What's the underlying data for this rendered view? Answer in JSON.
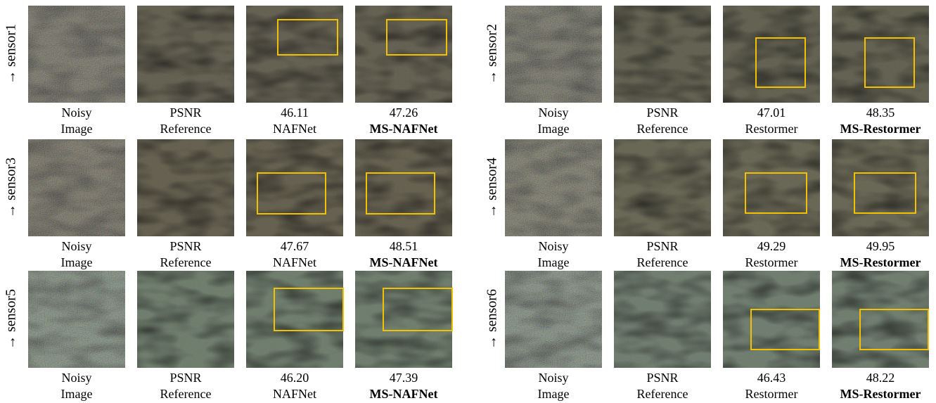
{
  "panels": [
    {
      "label": "→ sensor1",
      "images": [
        {
          "line1": "Noisy",
          "line2": "Image"
        },
        {
          "line1": "PSNR",
          "line2": "Reference"
        },
        {
          "line1": "46.11",
          "line2": "NAFNet"
        },
        {
          "line1": "47.26",
          "line2": "MS-NAFNet"
        }
      ]
    },
    {
      "label": "→ sensor2",
      "images": [
        {
          "line1": "Noisy",
          "line2": "Image"
        },
        {
          "line1": "PSNR",
          "line2": "Reference"
        },
        {
          "line1": "47.01",
          "line2": "Restormer"
        },
        {
          "line1": "48.35",
          "line2": "MS-Restormer"
        }
      ]
    },
    {
      "label": "→ sensor3",
      "images": [
        {
          "line1": "Noisy",
          "line2": "Image"
        },
        {
          "line1": "PSNR",
          "line2": "Reference"
        },
        {
          "line1": "47.67",
          "line2": "NAFNet"
        },
        {
          "line1": "48.51",
          "line2": "MS-NAFNet"
        }
      ]
    },
    {
      "label": "→ sensor4",
      "images": [
        {
          "line1": "Noisy",
          "line2": "Image"
        },
        {
          "line1": "PSNR",
          "line2": "Reference"
        },
        {
          "line1": "49.29",
          "line2": "Restormer"
        },
        {
          "line1": "49.95",
          "line2": "MS-Restormer"
        }
      ]
    },
    {
      "label": "→ sensor5",
      "images": [
        {
          "line1": "Noisy",
          "line2": "Image"
        },
        {
          "line1": "PSNR",
          "line2": "Reference"
        },
        {
          "line1": "46.20",
          "line2": "NAFNet"
        },
        {
          "line1": "47.39",
          "line2": "MS-NAFNet"
        }
      ]
    },
    {
      "label": "→ sensor6",
      "images": [
        {
          "line1": "Noisy",
          "line2": "Image"
        },
        {
          "line1": "PSNR",
          "line2": "Reference"
        },
        {
          "line1": "46.43",
          "line2": "Restormer"
        },
        {
          "line1": "48.22",
          "line2": "MS-Restormer"
        }
      ]
    }
  ]
}
